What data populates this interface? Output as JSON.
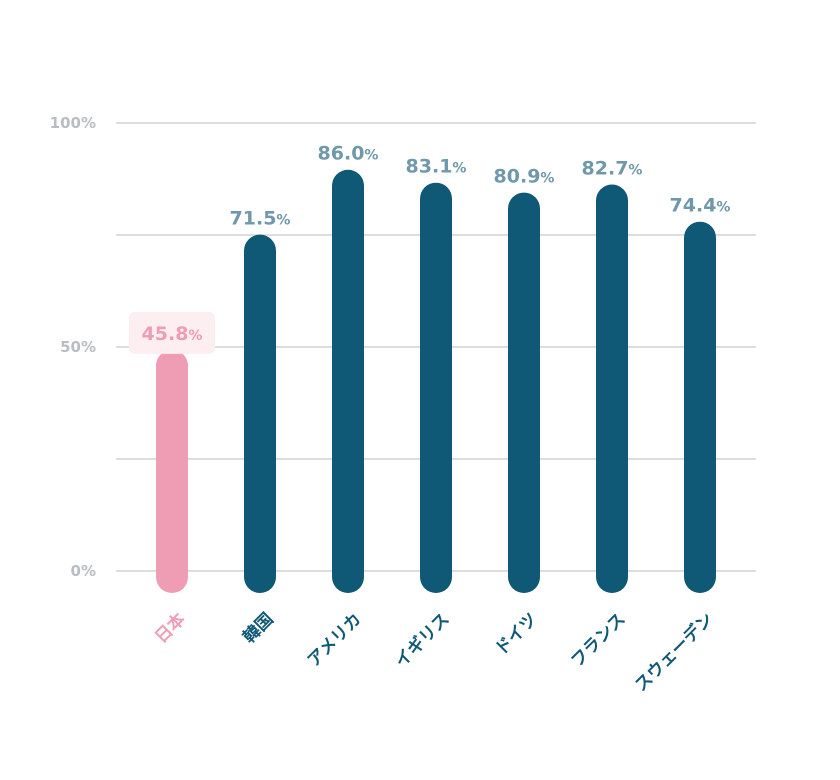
{
  "chart_data": {
    "type": "bar",
    "categories": [
      "日本",
      "韓国",
      "アメリカ",
      "イギリス",
      "ドイツ",
      "フランス",
      "スウェーデン"
    ],
    "values": [
      45.8,
      71.5,
      86.0,
      83.1,
      80.9,
      82.7,
      74.4
    ],
    "value_labels": [
      "45.8",
      "71.5",
      "86.0",
      "83.1",
      "80.9",
      "82.7",
      "74.4"
    ],
    "unit": "%",
    "highlight_index": 0,
    "ylim": [
      0,
      100
    ],
    "yticks": [
      0,
      25,
      50,
      75,
      100
    ],
    "ytick_labels": [
      "0%",
      "",
      "50%",
      "",
      "100%"
    ],
    "grid": true,
    "colors": {
      "bar": "#0f5876",
      "highlight_bar": "#ef9db4",
      "value_label": "#6f98aa",
      "highlight_value_label": "#ef9db4",
      "highlight_value_bg": "#fdeef2",
      "category_label": "#0f5876",
      "highlight_category_label": "#ef9db4",
      "grid": "#cccccc",
      "tick_label": "#b9bcc2"
    }
  }
}
